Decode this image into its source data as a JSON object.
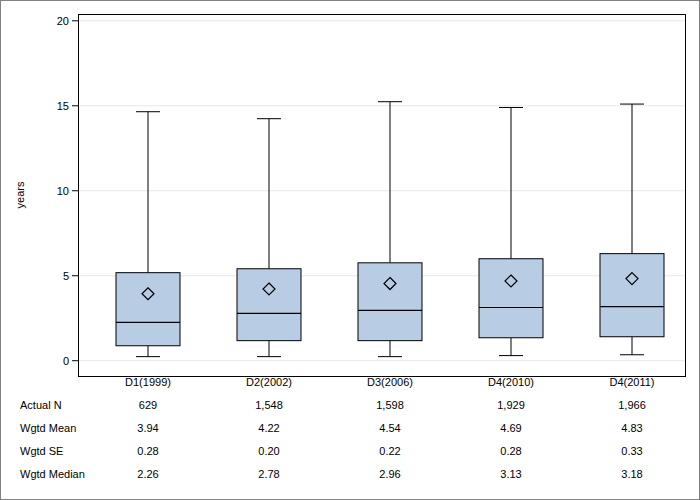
{
  "chart_data": {
    "type": "box",
    "y_label": "years",
    "categories": [
      "D1(1999)",
      "D2(2002)",
      "D3(2006)",
      "D4(2010)",
      "D4(2011)"
    ],
    "whisker_low": [
      0.24,
      0.24,
      0.24,
      0.3,
      0.35
    ],
    "q1": [
      0.88,
      1.18,
      1.18,
      1.35,
      1.41
    ],
    "q3": [
      5.18,
      5.41,
      5.76,
      6.0,
      6.3
    ],
    "whisker_high": [
      14.65,
      14.24,
      15.24,
      14.9,
      15.1
    ],
    "color": "#b8cce4",
    "ylim": [
      -0.9,
      20.4
    ],
    "yticks": [
      0,
      5,
      10,
      15,
      20
    ],
    "grid": true,
    "table": {
      "rows": [
        {
          "label": "Actual N",
          "values": [
            629,
            1548,
            1598,
            1929,
            1966
          ],
          "value_labels": [
            "629",
            "1,548",
            "1,598",
            "1,929",
            "1,966"
          ]
        },
        {
          "label": "Wgtd Mean",
          "values": [
            3.94,
            4.22,
            4.54,
            4.69,
            4.83
          ],
          "value_labels": [
            "3.94",
            "4.22",
            "4.54",
            "4.69",
            "4.83"
          ]
        },
        {
          "label": "Wgtd SE",
          "values": [
            0.28,
            0.2,
            0.22,
            0.28,
            0.33
          ],
          "value_labels": [
            "0.28",
            "0.20",
            "0.22",
            "0.28",
            "0.33"
          ]
        },
        {
          "label": "Wgtd Median",
          "values": [
            2.26,
            2.78,
            2.96,
            3.13,
            3.18
          ],
          "value_labels": [
            "2.26",
            "2.78",
            "2.96",
            "3.13",
            "3.18"
          ]
        }
      ]
    }
  }
}
